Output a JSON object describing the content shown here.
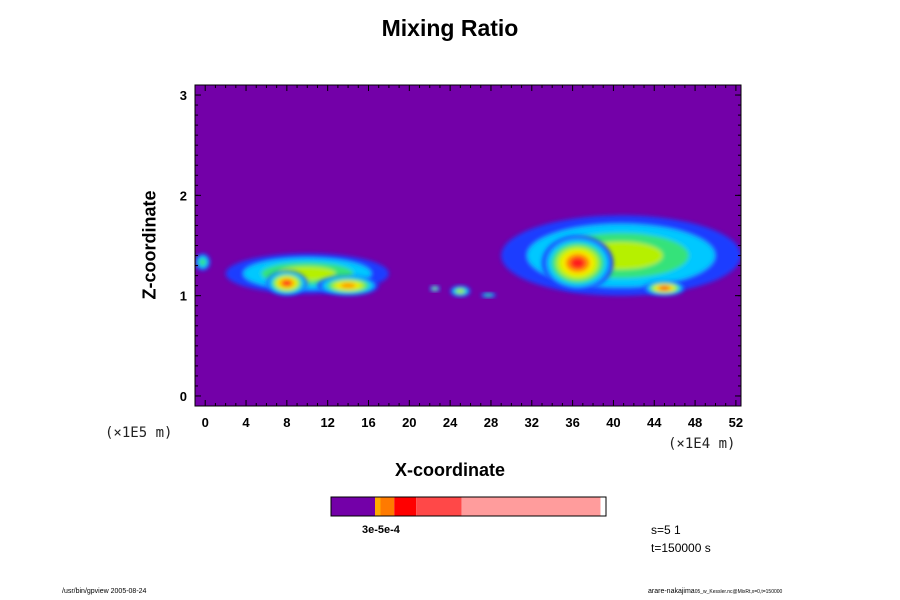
{
  "chart_data": {
    "type": "heatmap",
    "title": "Mixing Ratio",
    "xlabel": "X-coordinate",
    "ylabel": "Z-coordinate",
    "x_unit": "(×1E4 m)",
    "y_unit": "(×1E5 m)",
    "xlim": [
      -1,
      52.5
    ],
    "ylim": [
      -0.1,
      3.1
    ],
    "x_ticks": [
      "0",
      "4",
      "8",
      "12",
      "16",
      "20",
      "24",
      "28",
      "32",
      "36",
      "40",
      "44",
      "48",
      "52"
    ],
    "y_ticks": [
      "0",
      "1",
      "2",
      "3"
    ],
    "background_color": "#7300a8",
    "colorbar": {
      "segments": [
        {
          "color": "#7300a8",
          "fraction": 0.16
        },
        {
          "color": "#ffaa00",
          "fraction": 0.02
        },
        {
          "color": "#ff7a00",
          "fraction": 0.05
        },
        {
          "color": "#ff0000",
          "fraction": 0.08
        },
        {
          "color": "#ff4848",
          "fraction": 0.165
        },
        {
          "color": "#ff9c9c",
          "fraction": 0.505
        }
      ],
      "tick_label": "3e-5e-4"
    },
    "cloud_regions": [
      {
        "x": [
          -1,
          0.5
        ],
        "z": [
          1.25,
          1.42
        ],
        "level": 1
      },
      {
        "x": [
          2,
          18
        ],
        "z": [
          1.02,
          1.42
        ],
        "level": 2
      },
      {
        "x": [
          6,
          10
        ],
        "z": [
          1.0,
          1.25
        ],
        "level": 5
      },
      {
        "x": [
          11,
          17
        ],
        "z": [
          1.0,
          1.2
        ],
        "level": 4
      },
      {
        "x": [
          22,
          23
        ],
        "z": [
          1.04,
          1.1
        ],
        "level": 2
      },
      {
        "x": [
          24,
          26
        ],
        "z": [
          0.99,
          1.1
        ],
        "level": 2
      },
      {
        "x": [
          27,
          28.5
        ],
        "z": [
          0.98,
          1.03
        ],
        "level": 1
      },
      {
        "x": [
          29,
          52.5
        ],
        "z": [
          1.0,
          1.8
        ],
        "level": 2
      },
      {
        "x": [
          33,
          40
        ],
        "z": [
          1.05,
          1.6
        ],
        "level": 5
      },
      {
        "x": [
          43,
          47
        ],
        "z": [
          1.0,
          1.15
        ],
        "level": 5
      }
    ]
  },
  "sim_step": "s=5 1",
  "sim_time": "t=150000 s",
  "footer_left": "/usr/bin/gpview 2005-08-24",
  "footer_right_main": "arare-nakajima",
  "footer_right_small": "05_w_Kessler.nc@MixRt,x=0,t=150000"
}
